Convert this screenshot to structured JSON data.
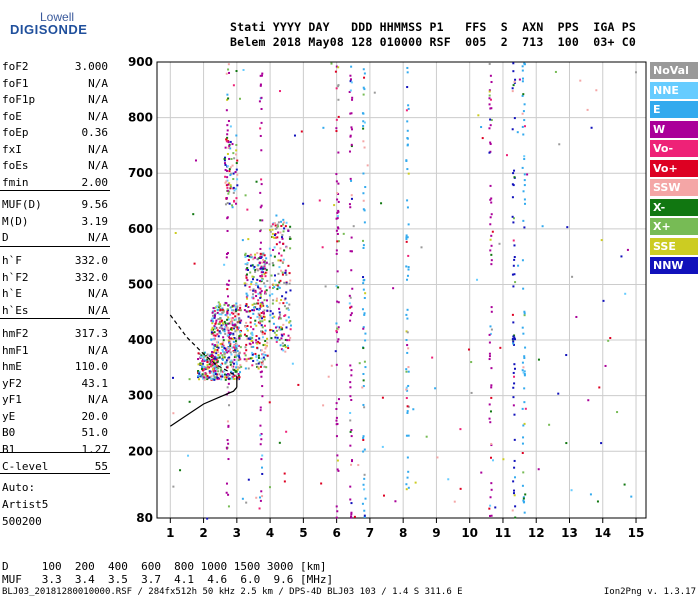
{
  "logo": {
    "line1": "Lowell",
    "line2": "DIGISONDE"
  },
  "header": {
    "line1": "Stati YYYY DAY   DDD HHMMSS P1   FFS  S  AXN  PPS  IGA PS",
    "line2": "Belem 2018 May08 128 010000 RSF  005  2  713  100  03+ C0"
  },
  "params_group1": [
    {
      "name": "foF2",
      "value": "3.000"
    },
    {
      "name": "foF1",
      "value": "N/A"
    },
    {
      "name": "foF1p",
      "value": "N/A"
    },
    {
      "name": "foE",
      "value": "N/A"
    },
    {
      "name": "foEp",
      "value": "0.36"
    },
    {
      "name": "fxI",
      "value": "N/A"
    },
    {
      "name": "foEs",
      "value": "N/A"
    },
    {
      "name": "fmin",
      "value": "2.00"
    }
  ],
  "params_group2": [
    {
      "name": "MUF(D)",
      "value": "9.56"
    },
    {
      "name": "M(D)",
      "value": "3.19"
    },
    {
      "name": "D",
      "value": "N/A"
    }
  ],
  "params_group3": [
    {
      "name": "h`F",
      "value": "332.0"
    },
    {
      "name": "h`F2",
      "value": "332.0"
    },
    {
      "name": "h`E",
      "value": "N/A"
    },
    {
      "name": "h`Es",
      "value": "N/A"
    }
  ],
  "params_group4": [
    {
      "name": "hmF2",
      "value": "317.3"
    },
    {
      "name": "hmF1",
      "value": "N/A"
    },
    {
      "name": "hmE",
      "value": "110.0"
    },
    {
      "name": "yF2",
      "value": "43.1"
    },
    {
      "name": "yF1",
      "value": "N/A"
    },
    {
      "name": "yE",
      "value": "20.0"
    },
    {
      "name": "B0",
      "value": "51.0"
    },
    {
      "name": "B1",
      "value": "1.27"
    }
  ],
  "params_group5": [
    {
      "name": "C-level",
      "value": "55"
    }
  ],
  "notes": [
    "Auto:",
    "Artist5",
    "500200"
  ],
  "legend": [
    {
      "label": "NoVal",
      "color": "#999999"
    },
    {
      "label": "NNE",
      "color": "#66ccff"
    },
    {
      "label": "E",
      "color": "#33aaee"
    },
    {
      "label": "W",
      "color": "#aa0099"
    },
    {
      "label": "Vo-",
      "color": "#ee2277"
    },
    {
      "label": "Vo+",
      "color": "#dd0022"
    },
    {
      "label": "SSW",
      "color": "#f4a6a6"
    },
    {
      "label": "X-",
      "color": "#117711"
    },
    {
      "label": "X+",
      "color": "#77bb55"
    },
    {
      "label": "SSE",
      "color": "#cccc22"
    },
    {
      "label": "NNW",
      "color": "#1111bb"
    }
  ],
  "footer": {
    "d_line": "D     100  200  400  600  800 1000 1500 3000 [km]",
    "muf_line": "MUF   3.3  3.4  3.5  3.7  4.1  4.6  6.0  9.6 [MHz]",
    "bottom_left": "BLJ03_20181280010000.RSF / 284fx512h 50 kHz 2.5 km / DPS-4D BLJ03 103 / 1.4 S 311.6 E",
    "bottom_right": "Ion2Png v. 1.3.17"
  },
  "chart_data": {
    "type": "scatter",
    "xlabel": "",
    "ylabel": "",
    "xlim": [
      0.6,
      15.3
    ],
    "ylim": [
      80,
      900
    ],
    "x_ticks": [
      1,
      2,
      3,
      4,
      5,
      6,
      7,
      8,
      9,
      10,
      11,
      12,
      13,
      14,
      15
    ],
    "y_ticks": [
      80,
      200,
      300,
      400,
      500,
      600,
      700,
      800,
      900
    ],
    "grid": true,
    "series": [
      {
        "name": "F2 trace",
        "points": [
          [
            1.9,
            340
          ],
          [
            2.2,
            345
          ],
          [
            2.5,
            360
          ],
          [
            2.8,
            390
          ],
          [
            3.2,
            430
          ],
          [
            3.5,
            420
          ],
          [
            3.8,
            450
          ],
          [
            4.2,
            480
          ],
          [
            4.5,
            510
          ]
        ]
      },
      {
        "name": "vertical stripes",
        "x": [
          2.7,
          3.7,
          6.0,
          6.4,
          6.8,
          8.1,
          10.6,
          11.3,
          11.6
        ]
      }
    ],
    "profile_upper": [
      [
        1.0,
        445
      ],
      [
        1.5,
        405
      ],
      [
        2.0,
        375
      ],
      [
        2.4,
        355
      ],
      [
        2.7,
        345
      ],
      [
        3.0,
        335
      ]
    ],
    "profile_lower": [
      [
        1.0,
        245
      ],
      [
        1.5,
        265
      ],
      [
        2.0,
        285
      ],
      [
        2.5,
        298
      ],
      [
        2.9,
        308
      ],
      [
        3.0,
        315
      ]
    ]
  }
}
